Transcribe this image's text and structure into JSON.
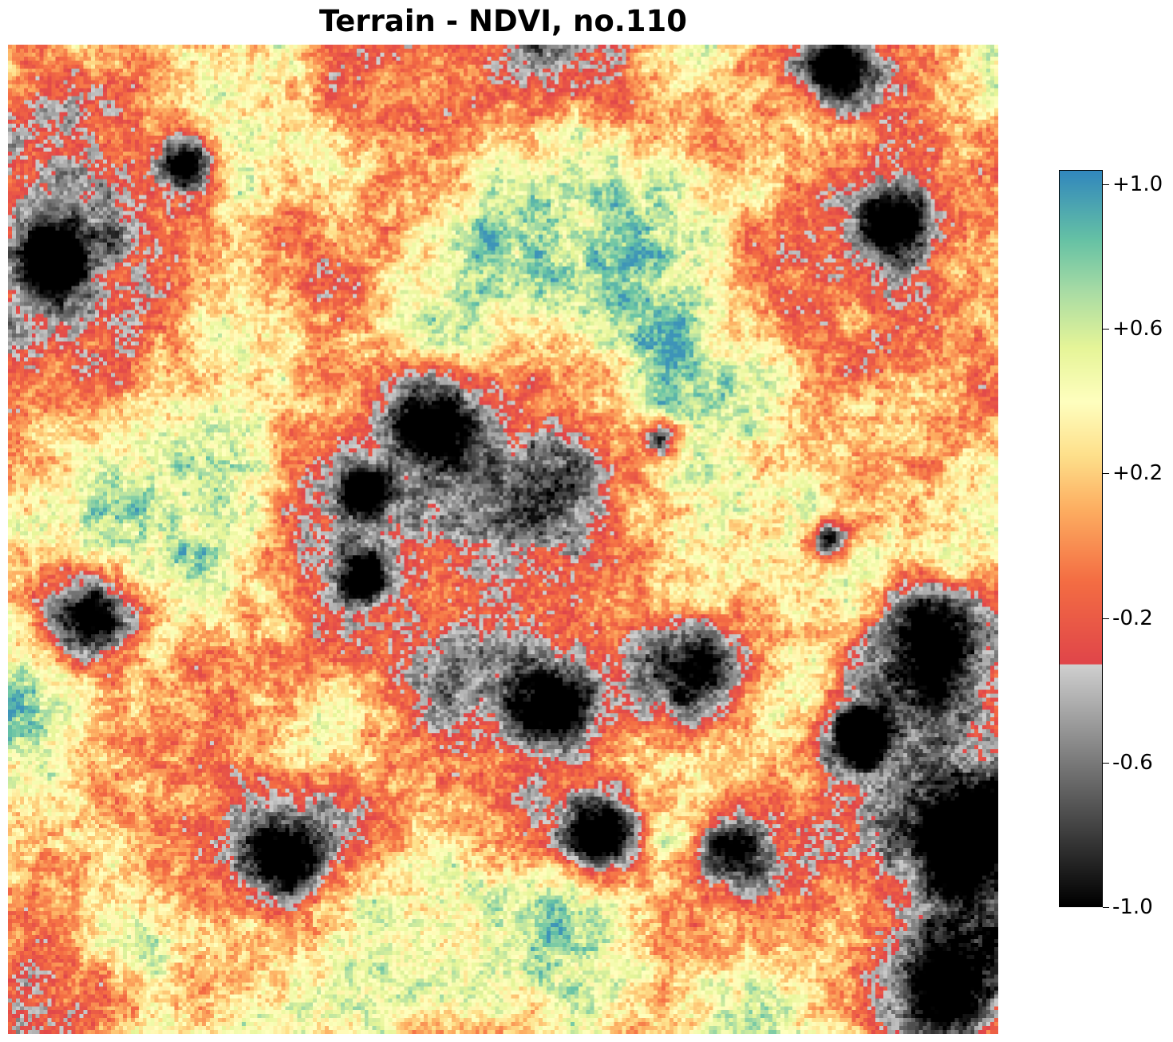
{
  "title": "Terrain - NDVI, no.110",
  "map": {
    "variable": "NDVI",
    "value_range": [
      -1.0,
      1.0
    ],
    "grid_cells": 250,
    "seed": 110
  },
  "colorbar": {
    "ticks": [
      {
        "value": 1.0,
        "label": "+1.0"
      },
      {
        "value": 0.6,
        "label": "+0.6"
      },
      {
        "value": 0.2,
        "label": "+0.2"
      },
      {
        "value": -0.2,
        "label": "-0.2"
      },
      {
        "value": -0.6,
        "label": "-0.6"
      },
      {
        "value": -1.0,
        "label": "-1.0"
      }
    ],
    "range": [
      -1.0,
      1.04
    ],
    "gray_stops": [
      {
        "value": -1.0,
        "color": "#000000"
      },
      {
        "value": -0.6,
        "color": "#7a7a7a"
      },
      {
        "value": -0.33,
        "color": "#d0d0d0"
      }
    ],
    "spectral_stops": [
      {
        "value": -0.33,
        "color": "#e0454a"
      },
      {
        "value": -0.1,
        "color": "#f46d43"
      },
      {
        "value": 0.1,
        "color": "#fdae61"
      },
      {
        "value": 0.25,
        "color": "#fee08b"
      },
      {
        "value": 0.4,
        "color": "#ffffbf"
      },
      {
        "value": 0.55,
        "color": "#e6f598"
      },
      {
        "value": 0.7,
        "color": "#abdda4"
      },
      {
        "value": 0.85,
        "color": "#66c2a5"
      },
      {
        "value": 1.04,
        "color": "#3288bd"
      }
    ]
  }
}
